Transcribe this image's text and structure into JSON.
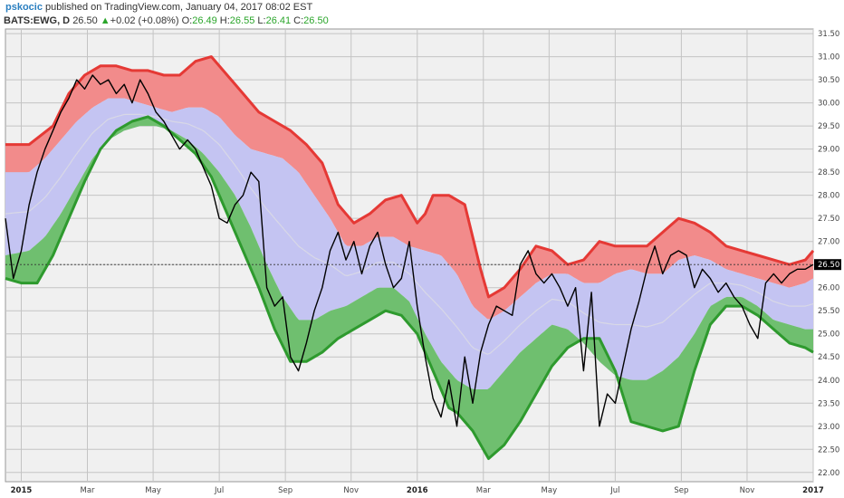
{
  "header": {
    "user": "pskocic",
    "published": "published on TradingView.com, January 04, 2017 08:02 EST",
    "symbol": "BATS:EWG, D",
    "last": "26.50",
    "change_arrow": "▲",
    "change": "+0.02 (+0.08%)",
    "o_label": "O:",
    "o_value": "26.49",
    "h_label": "H:",
    "h_value": "26.55",
    "l_label": "L:",
    "l_value": "26.41",
    "c_label": "C:",
    "c_value": "26.50"
  },
  "colors": {
    "background": "#f0f0f0",
    "grid": "#c4c4c4",
    "upper_band_fill": "#f28b8b",
    "upper_band_line": "#e53935",
    "middle_band_fill": "#c4c4f2",
    "lower_band_fill": "#6fbf6f",
    "lower_band_line": "#2e9a2e",
    "price_line": "#000000",
    "midline": "#d8d8e6",
    "last_price_label_bg": "#000000"
  },
  "chart_data": {
    "type": "line",
    "symbol": "BATS:EWG",
    "interval": "D",
    "ylim": [
      21.8,
      31.6
    ],
    "yticks": [
      22.0,
      22.5,
      23.0,
      23.5,
      24.0,
      24.5,
      25.0,
      25.5,
      26.0,
      26.5,
      27.0,
      27.5,
      28.0,
      28.5,
      29.0,
      29.5,
      30.0,
      30.5,
      31.0,
      31.5
    ],
    "ytick_labels": [
      "22.00",
      "22.50",
      "23.00",
      "23.50",
      "24.00",
      "24.50",
      "25.00",
      "25.50",
      "26.00",
      "26.50",
      "27.00",
      "27.50",
      "28.00",
      "28.50",
      "29.00",
      "29.50",
      "30.00",
      "30.50",
      "31.00",
      "31.50"
    ],
    "xlim": [
      2014.96,
      2017.0
    ],
    "xticks": [
      {
        "label": "2015",
        "t": 2015.0,
        "bold": true
      },
      {
        "label": "Mar",
        "t": 2015.167,
        "bold": false
      },
      {
        "label": "May",
        "t": 2015.333,
        "bold": false
      },
      {
        "label": "Jul",
        "t": 2015.5,
        "bold": false
      },
      {
        "label": "Sep",
        "t": 2015.667,
        "bold": false
      },
      {
        "label": "Nov",
        "t": 2015.833,
        "bold": false
      },
      {
        "label": "2016",
        "t": 2016.0,
        "bold": true
      },
      {
        "label": "Mar",
        "t": 2016.167,
        "bold": false
      },
      {
        "label": "May",
        "t": 2016.333,
        "bold": false
      },
      {
        "label": "Jul",
        "t": 2016.5,
        "bold": false
      },
      {
        "label": "Sep",
        "t": 2016.667,
        "bold": false
      },
      {
        "label": "Nov",
        "t": 2016.833,
        "bold": false
      },
      {
        "label": "2017",
        "t": 2017.0,
        "bold": true
      }
    ],
    "last_price": 26.5,
    "last_price_label": "26.50",
    "grid": true,
    "series": [
      {
        "role": "upper_band",
        "x": [
          2014.96,
          2015.02,
          2015.08,
          2015.12,
          2015.16,
          2015.2,
          2015.24,
          2015.28,
          2015.32,
          2015.36,
          2015.4,
          2015.44,
          2015.48,
          2015.52,
          2015.56,
          2015.6,
          2015.64,
          2015.68,
          2015.72,
          2015.76,
          2015.8,
          2015.84,
          2015.88,
          2015.92,
          2015.96,
          2016.0,
          2016.02,
          2016.04,
          2016.08,
          2016.12,
          2016.16,
          2016.18,
          2016.22,
          2016.26,
          2016.3,
          2016.34,
          2016.38,
          2016.42,
          2016.46,
          2016.5,
          2016.54,
          2016.58,
          2016.62,
          2016.66,
          2016.7,
          2016.74,
          2016.78,
          2016.82,
          2016.86,
          2016.9,
          2016.94,
          2016.98,
          2017.0
        ],
        "values": [
          29.1,
          29.1,
          29.5,
          30.2,
          30.6,
          30.8,
          30.8,
          30.7,
          30.7,
          30.6,
          30.6,
          30.9,
          31.0,
          30.6,
          30.2,
          29.8,
          29.6,
          29.4,
          29.1,
          28.7,
          27.8,
          27.4,
          27.6,
          27.9,
          28.0,
          27.4,
          27.6,
          28.0,
          28.0,
          27.8,
          26.4,
          25.8,
          26.0,
          26.4,
          26.9,
          26.8,
          26.5,
          26.6,
          27.0,
          26.9,
          26.9,
          26.9,
          27.2,
          27.5,
          27.4,
          27.2,
          26.9,
          26.8,
          26.7,
          26.6,
          26.5,
          26.6,
          26.8
        ]
      },
      {
        "role": "upper_mid",
        "x": [
          2014.96,
          2015.02,
          2015.06,
          2015.1,
          2015.14,
          2015.18,
          2015.22,
          2015.26,
          2015.3,
          2015.34,
          2015.38,
          2015.42,
          2015.46,
          2015.5,
          2015.54,
          2015.58,
          2015.62,
          2015.66,
          2015.7,
          2015.74,
          2015.78,
          2015.82,
          2015.86,
          2015.9,
          2015.94,
          2015.98,
          2016.02,
          2016.06,
          2016.1,
          2016.14,
          2016.18,
          2016.22,
          2016.26,
          2016.3,
          2016.34,
          2016.38,
          2016.42,
          2016.46,
          2016.5,
          2016.54,
          2016.58,
          2016.62,
          2016.66,
          2016.7,
          2016.74,
          2016.78,
          2016.82,
          2016.86,
          2016.9,
          2016.94,
          2016.98,
          2017.0
        ],
        "values": [
          28.5,
          28.5,
          28.8,
          29.2,
          29.6,
          29.9,
          30.1,
          30.1,
          30.0,
          29.9,
          29.8,
          29.9,
          29.9,
          29.7,
          29.3,
          29.0,
          28.9,
          28.8,
          28.5,
          28.0,
          27.5,
          26.9,
          26.9,
          27.1,
          27.1,
          26.9,
          26.8,
          26.7,
          26.3,
          25.6,
          25.3,
          25.5,
          25.8,
          26.1,
          26.3,
          26.3,
          26.1,
          26.1,
          26.3,
          26.4,
          26.3,
          26.3,
          26.6,
          26.7,
          26.6,
          26.4,
          26.3,
          26.2,
          26.1,
          26.0,
          26.1,
          26.2
        ]
      },
      {
        "role": "lower_mid",
        "x": [
          2014.96,
          2015.02,
          2015.06,
          2015.1,
          2015.14,
          2015.18,
          2015.22,
          2015.26,
          2015.3,
          2015.34,
          2015.38,
          2015.42,
          2015.46,
          2015.5,
          2015.54,
          2015.58,
          2015.62,
          2015.66,
          2015.7,
          2015.74,
          2015.78,
          2015.82,
          2015.86,
          2015.9,
          2015.94,
          2015.98,
          2016.02,
          2016.06,
          2016.1,
          2016.14,
          2016.18,
          2016.22,
          2016.26,
          2016.3,
          2016.34,
          2016.38,
          2016.42,
          2016.46,
          2016.5,
          2016.54,
          2016.58,
          2016.62,
          2016.66,
          2016.7,
          2016.74,
          2016.78,
          2016.82,
          2016.86,
          2016.9,
          2016.94,
          2016.98,
          2017.0
        ],
        "values": [
          26.7,
          26.8,
          27.1,
          27.6,
          28.2,
          28.8,
          29.2,
          29.4,
          29.5,
          29.5,
          29.4,
          29.2,
          28.9,
          28.5,
          28.0,
          27.3,
          26.5,
          25.8,
          25.3,
          25.3,
          25.5,
          25.6,
          25.8,
          26.0,
          26.0,
          25.7,
          25.0,
          24.4,
          24.0,
          23.8,
          23.8,
          24.2,
          24.6,
          24.9,
          25.2,
          25.1,
          24.8,
          24.4,
          24.1,
          24.0,
          24.0,
          24.2,
          24.5,
          25.0,
          25.6,
          25.8,
          25.8,
          25.6,
          25.3,
          25.2,
          25.1,
          25.1
        ]
      },
      {
        "role": "lower_band",
        "x": [
          2014.96,
          2015.0,
          2015.04,
          2015.08,
          2015.12,
          2015.16,
          2015.2,
          2015.24,
          2015.28,
          2015.32,
          2015.36,
          2015.4,
          2015.44,
          2015.48,
          2015.52,
          2015.56,
          2015.6,
          2015.64,
          2015.68,
          2015.72,
          2015.76,
          2015.8,
          2015.84,
          2015.88,
          2015.92,
          2015.96,
          2016.0,
          2016.04,
          2016.08,
          2016.1,
          2016.14,
          2016.18,
          2016.22,
          2016.26,
          2016.3,
          2016.34,
          2016.38,
          2016.42,
          2016.46,
          2016.5,
          2016.54,
          2016.58,
          2016.62,
          2016.66,
          2016.7,
          2016.74,
          2016.78,
          2016.82,
          2016.86,
          2016.9,
          2016.94,
          2016.98,
          2017.0
        ],
        "values": [
          26.2,
          26.1,
          26.1,
          26.7,
          27.5,
          28.3,
          29.0,
          29.4,
          29.6,
          29.7,
          29.5,
          29.2,
          28.9,
          28.4,
          27.6,
          26.8,
          26.0,
          25.1,
          24.4,
          24.4,
          24.6,
          24.9,
          25.1,
          25.3,
          25.5,
          25.4,
          25.0,
          24.2,
          23.4,
          23.3,
          22.9,
          22.3,
          22.6,
          23.1,
          23.7,
          24.3,
          24.7,
          24.9,
          24.9,
          24.2,
          23.1,
          23.0,
          22.9,
          23.0,
          24.2,
          25.2,
          25.6,
          25.6,
          25.4,
          25.1,
          24.8,
          24.7,
          24.6
        ]
      },
      {
        "role": "price",
        "x": [
          2014.96,
          2014.98,
          2015.0,
          2015.02,
          2015.04,
          2015.06,
          2015.08,
          2015.1,
          2015.12,
          2015.14,
          2015.16,
          2015.18,
          2015.2,
          2015.22,
          2015.24,
          2015.26,
          2015.28,
          2015.3,
          2015.32,
          2015.34,
          2015.36,
          2015.38,
          2015.4,
          2015.42,
          2015.44,
          2015.46,
          2015.48,
          2015.5,
          2015.52,
          2015.54,
          2015.56,
          2015.58,
          2015.6,
          2015.62,
          2015.64,
          2015.66,
          2015.68,
          2015.7,
          2015.72,
          2015.74,
          2015.76,
          2015.78,
          2015.8,
          2015.82,
          2015.84,
          2015.86,
          2015.88,
          2015.9,
          2015.92,
          2015.94,
          2015.96,
          2015.98,
          2016.0,
          2016.02,
          2016.04,
          2016.06,
          2016.08,
          2016.1,
          2016.12,
          2016.14,
          2016.16,
          2016.18,
          2016.2,
          2016.22,
          2016.24,
          2016.26,
          2016.28,
          2016.3,
          2016.32,
          2016.34,
          2016.36,
          2016.38,
          2016.4,
          2016.42,
          2016.44,
          2016.46,
          2016.48,
          2016.5,
          2016.52,
          2016.54,
          2016.56,
          2016.58,
          2016.6,
          2016.62,
          2016.64,
          2016.66,
          2016.68,
          2016.7,
          2016.72,
          2016.74,
          2016.76,
          2016.78,
          2016.8,
          2016.82,
          2016.84,
          2016.86,
          2016.88,
          2016.9,
          2016.92,
          2016.94,
          2016.96,
          2016.98,
          2017.0
        ],
        "values": [
          27.5,
          26.2,
          26.8,
          27.8,
          28.5,
          29.0,
          29.4,
          29.8,
          30.1,
          30.5,
          30.3,
          30.6,
          30.4,
          30.5,
          30.2,
          30.4,
          30.0,
          30.5,
          30.2,
          29.8,
          29.6,
          29.3,
          29.0,
          29.2,
          29.0,
          28.6,
          28.2,
          27.5,
          27.4,
          27.8,
          28.0,
          28.5,
          28.3,
          26.0,
          25.6,
          25.8,
          24.5,
          24.2,
          24.8,
          25.5,
          26.0,
          26.8,
          27.2,
          26.6,
          27.0,
          26.3,
          26.9,
          27.2,
          26.5,
          26.0,
          26.2,
          27.0,
          25.6,
          24.5,
          23.6,
          23.2,
          24.0,
          23.0,
          24.5,
          23.5,
          24.6,
          25.2,
          25.6,
          25.5,
          25.4,
          26.5,
          26.8,
          26.3,
          26.1,
          26.3,
          26.0,
          25.6,
          26.0,
          24.2,
          25.9,
          23.0,
          23.7,
          23.5,
          24.3,
          25.1,
          25.7,
          26.4,
          26.9,
          26.3,
          26.7,
          26.8,
          26.7,
          26.0,
          26.4,
          26.2,
          25.9,
          26.1,
          25.8,
          25.6,
          25.2,
          24.9,
          26.1,
          26.3,
          26.1,
          26.3,
          26.4,
          26.4,
          26.5
        ]
      }
    ]
  }
}
